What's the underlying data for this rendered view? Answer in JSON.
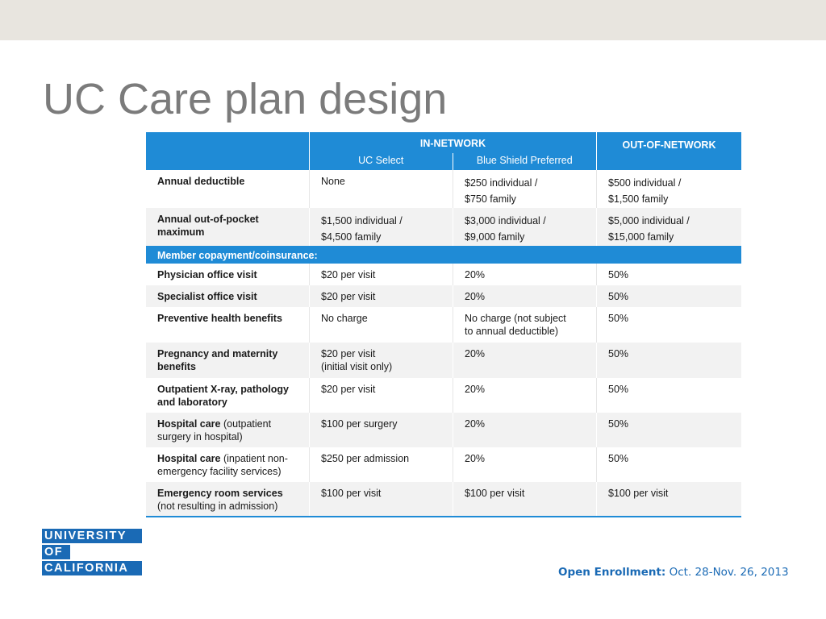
{
  "title": "UC Care plan design",
  "table": {
    "in_network": "IN-NETWORK",
    "uc_select": "UC Select",
    "blue_shield": "Blue Shield Preferred",
    "out_network": "OUT-OF-NETWORK",
    "deductible": {
      "label": "Annual deductible",
      "uc": "None",
      "bs1": "$250 individual /",
      "bs2": "$750 family",
      "out1": "$500 individual /",
      "out2": "$1,500 family"
    },
    "oop": {
      "label1": "Annual out-of-pocket",
      "label2": "maximum",
      "uc1": "$1,500 individual /",
      "uc2": "$4,500 family",
      "bs1": "$3,000 individual /",
      "bs2": "$9,000 family",
      "out1": "$5,000 individual /",
      "out2": "$15,000 family"
    },
    "section": "Member copayment/coinsurance:",
    "rows": [
      {
        "l1": "Physician office visit",
        "uc": "$20 per visit",
        "bs": "20%",
        "out": "50%"
      },
      {
        "l1": "Specialist office visit",
        "uc": "$20 per visit",
        "bs": "20%",
        "out": "50%"
      },
      {
        "l1": "Preventive health benefits",
        "uc": "No charge",
        "bs": "No charge (not subject",
        "bs2": "to annual deductible)",
        "out": "50%"
      },
      {
        "l1": "Pregnancy and maternity",
        "l2": "benefits",
        "uc": "$20 per visit",
        "uc2": "(initial visit only)",
        "bs": "20%",
        "out": "50%"
      },
      {
        "l1": "Outpatient X-ray, pathology",
        "l2": "and laboratory",
        "uc": "$20 per visit",
        "bs": "20%",
        "out": "50%"
      },
      {
        "l1": "Hospital care",
        "l1b": " (outpatient",
        "l2": "surgery in hospital)",
        "uc": "$100 per surgery",
        "bs": "20%",
        "out": "50%"
      },
      {
        "l1": "Hospital care",
        "l1b": " (inpatient non-",
        "l2": "emergency facility services)",
        "uc": "$250 per admission",
        "bs": "20%",
        "out": "50%"
      },
      {
        "l1": "Emergency room services",
        "l2": "(not resulting in admission)",
        "uc": "$100 per visit",
        "bs": "$100 per visit",
        "out": "$100 per visit"
      }
    ]
  },
  "logo": {
    "line1": "UNIVERSITY",
    "line2": "OF",
    "line3": "CALIFORNIA"
  },
  "footer": {
    "label": "Open Enrollment:",
    "dates": " Oct. 28-Nov. 26, 2013"
  },
  "colors": {
    "accent": "#1f8bd6",
    "brand": "#1a6ab5",
    "title": "#7b7b7b",
    "band": "#e8e5df"
  }
}
